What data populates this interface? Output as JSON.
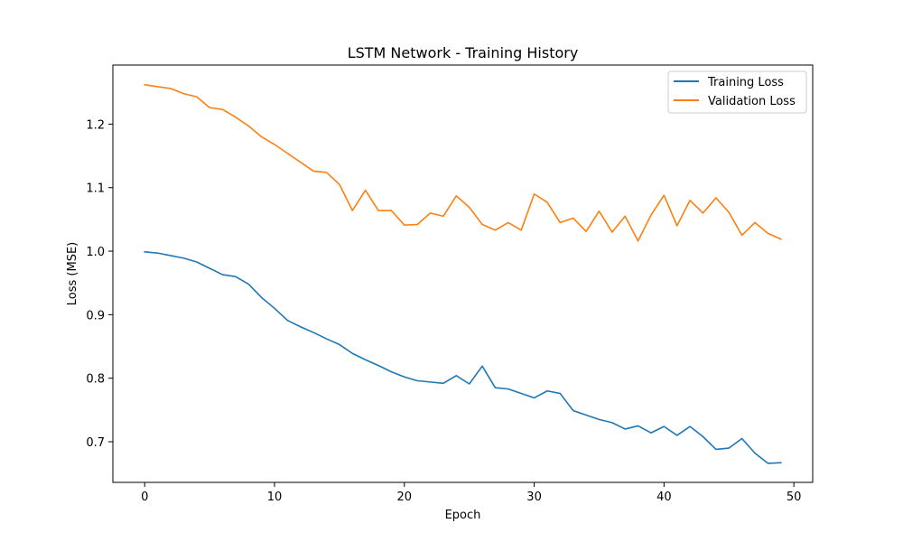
{
  "chart_data": {
    "type": "line",
    "title": "LSTM Network - Training History",
    "xlabel": "Epoch",
    "ylabel": "Loss (MSE)",
    "xlim": [
      -2.45,
      51.45
    ],
    "ylim": [
      0.636,
      1.293
    ],
    "xticks": [
      0,
      10,
      20,
      30,
      40,
      50
    ],
    "yticks": [
      0.7,
      0.8,
      0.9,
      1.0,
      1.1,
      1.2
    ],
    "xtick_labels": [
      "0",
      "10",
      "20",
      "30",
      "40",
      "50"
    ],
    "ytick_labels": [
      "0.7",
      "0.8",
      "0.9",
      "1.0",
      "1.1",
      "1.2"
    ],
    "grid": false,
    "legend_position": "top-right",
    "x": [
      0,
      1,
      2,
      3,
      4,
      5,
      6,
      7,
      8,
      9,
      10,
      11,
      12,
      13,
      14,
      15,
      16,
      17,
      18,
      19,
      20,
      21,
      22,
      23,
      24,
      25,
      26,
      27,
      28,
      29,
      30,
      31,
      32,
      33,
      34,
      35,
      36,
      37,
      38,
      39,
      40,
      41,
      42,
      43,
      44,
      45,
      46,
      47,
      48,
      49
    ],
    "series": [
      {
        "name": "Training Loss",
        "color": "#1f77b4",
        "values": [
          0.999,
          0.997,
          0.993,
          0.989,
          0.983,
          0.973,
          0.963,
          0.96,
          0.948,
          0.927,
          0.91,
          0.891,
          0.881,
          0.872,
          0.862,
          0.853,
          0.839,
          0.829,
          0.82,
          0.81,
          0.802,
          0.796,
          0.794,
          0.792,
          0.804,
          0.791,
          0.819,
          0.785,
          0.783,
          0.776,
          0.769,
          0.78,
          0.776,
          0.749,
          0.742,
          0.735,
          0.73,
          0.72,
          0.725,
          0.714,
          0.724,
          0.71,
          0.724,
          0.708,
          0.688,
          0.69,
          0.705,
          0.682,
          0.666,
          0.667
        ]
      },
      {
        "name": "Validation Loss",
        "color": "#ff7f0e",
        "values": [
          1.262,
          1.259,
          1.256,
          1.248,
          1.243,
          1.226,
          1.223,
          1.211,
          1.197,
          1.18,
          1.168,
          1.154,
          1.14,
          1.126,
          1.124,
          1.105,
          1.064,
          1.096,
          1.064,
          1.064,
          1.041,
          1.042,
          1.06,
          1.055,
          1.087,
          1.069,
          1.042,
          1.033,
          1.045,
          1.033,
          1.09,
          1.077,
          1.045,
          1.052,
          1.031,
          1.063,
          1.03,
          1.055,
          1.016,
          1.057,
          1.088,
          1.04,
          1.08,
          1.06,
          1.084,
          1.061,
          1.025,
          1.045,
          1.028,
          1.019
        ]
      }
    ]
  }
}
